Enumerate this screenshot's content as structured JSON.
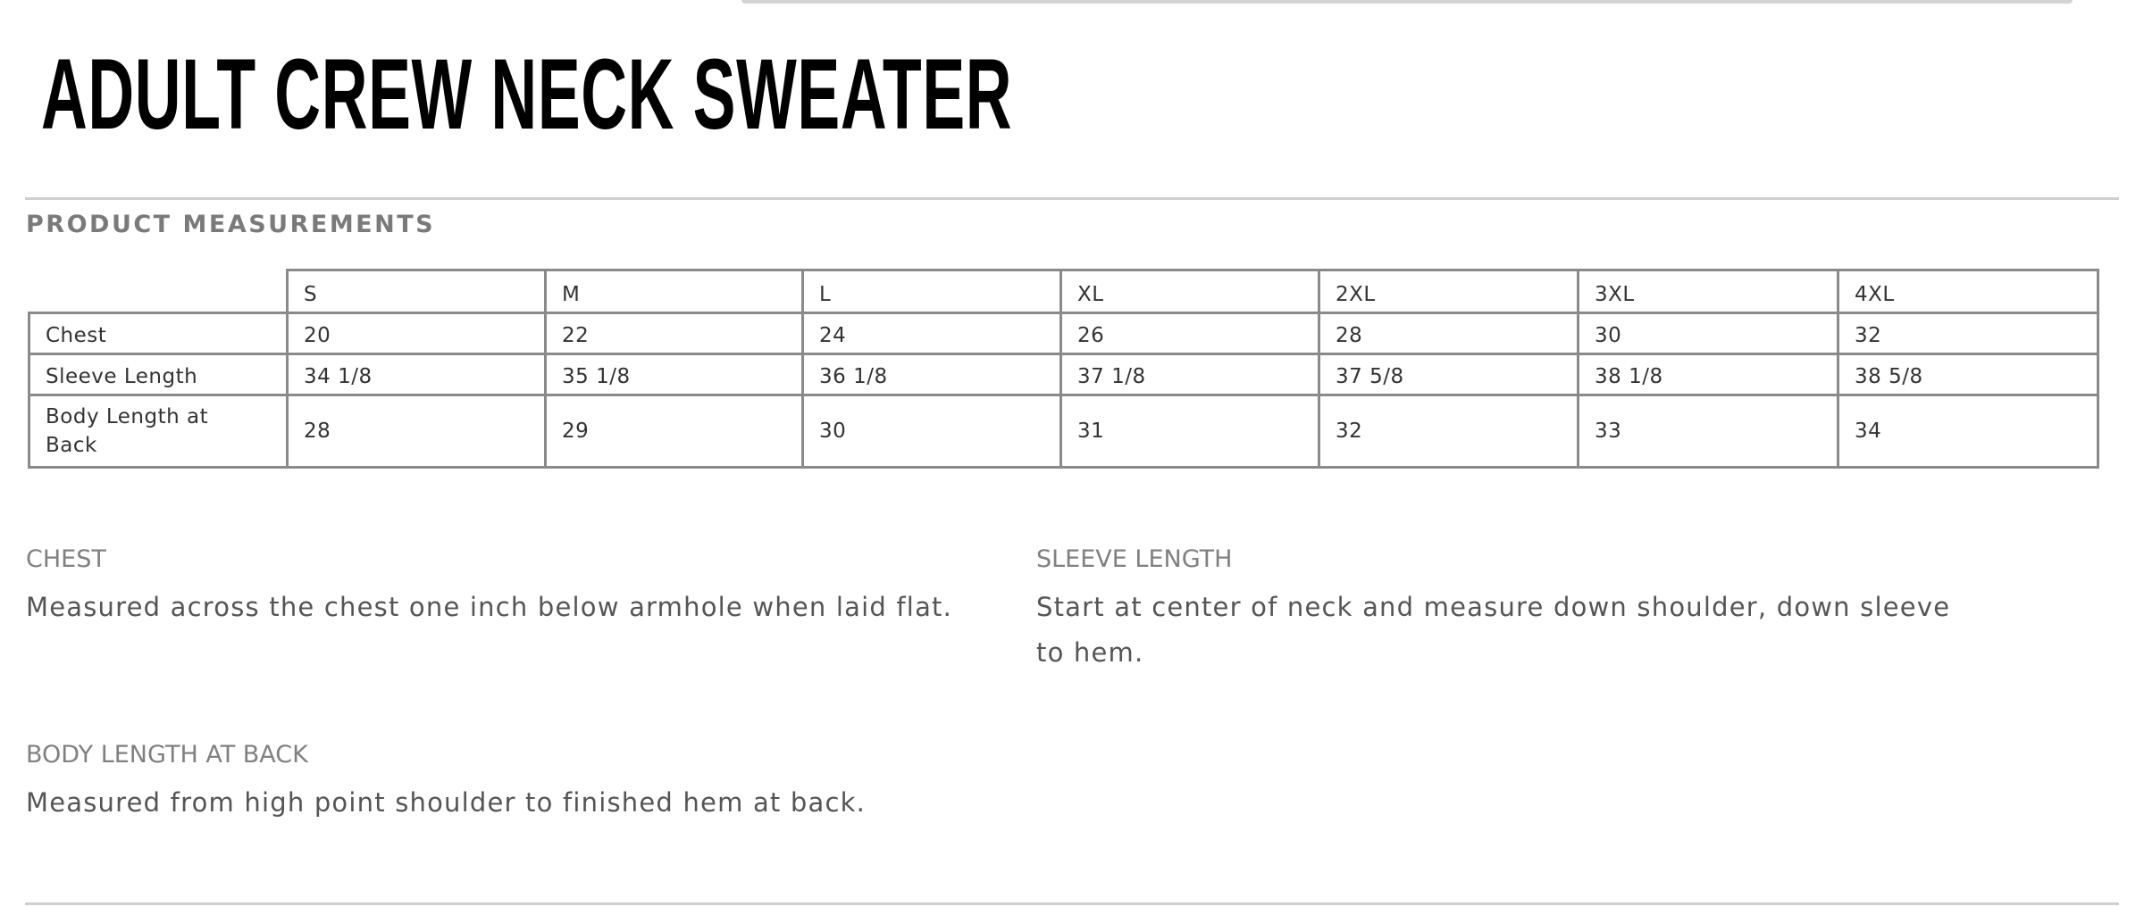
{
  "title": "ADULT CREW NECK SWEATER",
  "section_title": "PRODUCT MEASUREMENTS",
  "table": {
    "columns": [
      "S",
      "M",
      "L",
      "XL",
      "2XL",
      "3XL",
      "4XL"
    ],
    "rows": [
      {
        "label": "Chest",
        "values": [
          "20",
          "22",
          "24",
          "26",
          "28",
          "30",
          "32"
        ]
      },
      {
        "label": "Sleeve Length",
        "values": [
          "34 1/8",
          "35 1/8",
          "36 1/8",
          "37 1/8",
          "37 5/8",
          "38 1/8",
          "38 5/8"
        ]
      },
      {
        "label": "Body Length at Back",
        "values": [
          "28",
          "29",
          "30",
          "31",
          "32",
          "33",
          "34"
        ]
      }
    ]
  },
  "definitions": {
    "chest": {
      "heading": "CHEST",
      "text": "Measured across the chest one inch below armhole when laid flat."
    },
    "sleeve": {
      "heading": "SLEEVE LENGTH",
      "text": "Start at center of neck and measure down shoulder, down sleeve to hem."
    },
    "body": {
      "heading": "BODY LENGTH AT BACK",
      "text": "Measured from high point shoulder to finished hem at back."
    }
  }
}
